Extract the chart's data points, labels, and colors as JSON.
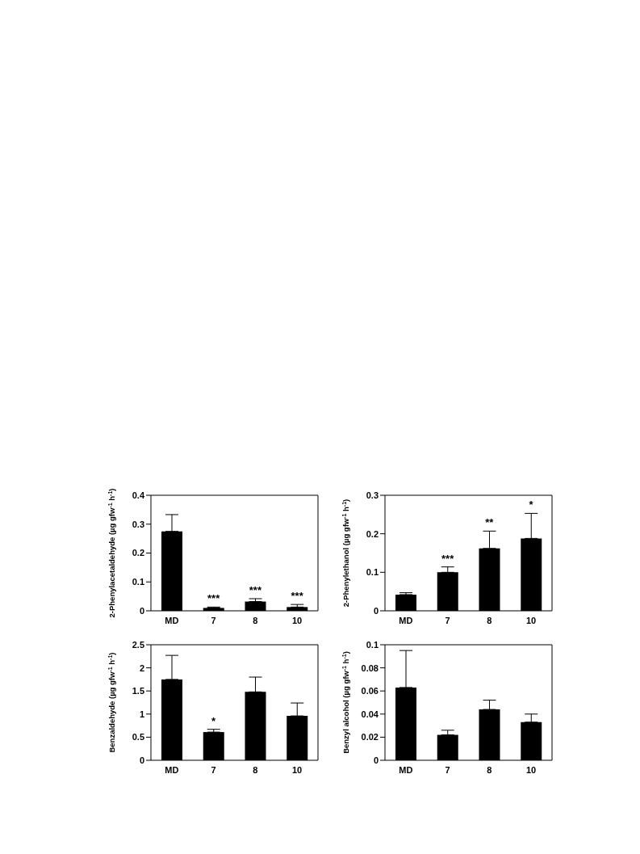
{
  "chart_data": [
    {
      "type": "bar",
      "categories": [
        "MD",
        "7",
        "8",
        "10"
      ],
      "values": [
        0.275,
        0.01,
        0.032,
        0.013
      ],
      "errors": [
        [
          0.275,
          0.333
        ],
        [
          0.01,
          0.013
        ],
        [
          0.032,
          0.042
        ],
        [
          0.013,
          0.022
        ]
      ],
      "color": "#000000",
      "ylabel": "2-Phenylacetaldehyde  (µg gfw$^{-1}$ h$^{-1}$)",
      "ylim": [
        0,
        0.4
      ],
      "yticks": [
        0,
        0.1,
        0.2,
        0.3,
        0.4
      ],
      "grid": false,
      "legend": false,
      "annotations": [
        {
          "text": "***",
          "x": "7",
          "y": 0.01
        },
        {
          "text": "***",
          "x": "8",
          "y": 0.032
        },
        {
          "text": "***",
          "x": "10",
          "y": 0.013
        }
      ]
    },
    {
      "type": "bar",
      "categories": [
        "MD",
        "7",
        "8",
        "10"
      ],
      "values": [
        0.042,
        0.1,
        0.162,
        0.188
      ],
      "errors": [
        [
          0.042,
          0.047
        ],
        [
          0.1,
          0.114
        ],
        [
          0.162,
          0.207
        ],
        [
          0.188,
          0.253
        ]
      ],
      "color": "#000000",
      "ylabel": "2-Phenylethanol (µg gfw$^{-1}$ h$^{-1}$)",
      "ylim": [
        0,
        0.3
      ],
      "yticks": [
        0,
        0.1,
        0.2,
        0.3
      ],
      "grid": false,
      "legend": false,
      "annotations": [
        {
          "text": "***",
          "x": "7",
          "y": 0.1
        },
        {
          "text": "**",
          "x": "8",
          "y": 0.162
        },
        {
          "text": "*",
          "x": "10",
          "y": 0.188
        }
      ]
    },
    {
      "type": "bar",
      "categories": [
        "MD",
        "7",
        "8",
        "10"
      ],
      "values": [
        1.75,
        0.61,
        1.48,
        0.96
      ],
      "errors": [
        [
          1.75,
          2.27
        ],
        [
          0.61,
          0.67
        ],
        [
          1.48,
          1.8
        ],
        [
          0.96,
          1.24
        ]
      ],
      "color": "#000000",
      "ylabel": "Benzaldehyde (µg gfw$^{-1}$ h$^{-1}$)",
      "ylim": [
        0,
        2.5
      ],
      "yticks": [
        0,
        0.5,
        1,
        1.5,
        2,
        2.5
      ],
      "grid": false,
      "legend": false,
      "annotations": [
        {
          "text": "*",
          "x": "7",
          "y": 0.61
        }
      ]
    },
    {
      "type": "bar",
      "categories": [
        "MD",
        "7",
        "8",
        "10"
      ],
      "values": [
        0.063,
        0.022,
        0.044,
        0.033
      ],
      "errors": [
        [
          0.063,
          0.095
        ],
        [
          0.022,
          0.026
        ],
        [
          0.044,
          0.052
        ],
        [
          0.033,
          0.04
        ]
      ],
      "color": "#000000",
      "ylabel": "Benzyl alcohol (µg gfw$^{-1}$ h$^{-1}$)",
      "ylim": [
        0,
        0.1
      ],
      "yticks": [
        0,
        0.02,
        0.04,
        0.06,
        0.08,
        0.1
      ],
      "grid": false,
      "legend": false
    }
  ]
}
